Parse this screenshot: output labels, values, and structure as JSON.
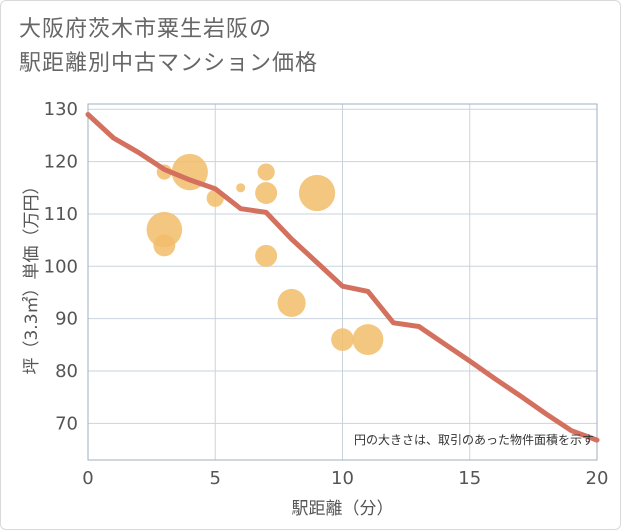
{
  "title_lines": [
    "大阪府茨木市粟生岩阪の",
    "駅距離別中古マンション価格"
  ],
  "colors": {
    "bubble": "#f2bd6b",
    "line": "#d4705e",
    "grid": "#c9d3de",
    "frame": "#9fb0c0"
  },
  "chart_data": {
    "type": "scatter",
    "title": "大阪府茨木市粟生岩阪の駅距離別中古マンション価格",
    "xlabel": "駅距離（分）",
    "ylabel": "坪（3.3㎡）単価（万円）",
    "xlim": [
      0,
      20
    ],
    "ylim": [
      63,
      131
    ],
    "x_ticks": [
      0,
      5,
      10,
      15,
      20
    ],
    "y_ticks": [
      70,
      80,
      90,
      100,
      110,
      120,
      130
    ],
    "grid": true,
    "note": "円の大きさは、取引のあった物件面積を示す",
    "bubbles": [
      {
        "x": 3,
        "y": 118,
        "size": 1.5
      },
      {
        "x": 3,
        "y": 107,
        "size": 4.5
      },
      {
        "x": 3,
        "y": 104,
        "size": 2.5
      },
      {
        "x": 4,
        "y": 118,
        "size": 4.6
      },
      {
        "x": 5,
        "y": 113,
        "size": 1.8
      },
      {
        "x": 6,
        "y": 115,
        "size": 0.6
      },
      {
        "x": 7,
        "y": 118,
        "size": 1.8
      },
      {
        "x": 7,
        "y": 114,
        "size": 2.5
      },
      {
        "x": 7,
        "y": 102,
        "size": 2.5
      },
      {
        "x": 8,
        "y": 93,
        "size": 3.4
      },
      {
        "x": 9,
        "y": 114,
        "size": 4.6
      },
      {
        "x": 10,
        "y": 86,
        "size": 2.6
      },
      {
        "x": 11,
        "y": 86,
        "size": 3.8
      }
    ],
    "trend_line": {
      "x": [
        0,
        1,
        2,
        3,
        4,
        5,
        6,
        7,
        8,
        9,
        10,
        11,
        12,
        13,
        14,
        15,
        16,
        17,
        18,
        19,
        20
      ],
      "y": [
        129,
        124.5,
        121.7,
        118.5,
        116.5,
        114.8,
        111,
        110.3,
        105.2,
        100.7,
        96.2,
        95.2,
        89.2,
        88.5,
        85.2,
        81.9,
        78.5,
        75.2,
        71.8,
        68.6,
        66.8
      ]
    }
  }
}
